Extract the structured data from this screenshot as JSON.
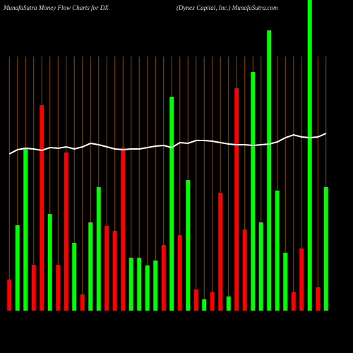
{
  "chart_data": {
    "type": "bar",
    "title": "MunafaSutra  Money Flow  Charts for DX",
    "subtitle": "(Dynex Capital,  Inc.) MunafaSutra.com",
    "categories": [
      null,
      null,
      null,
      null,
      null,
      null,
      null,
      null,
      null,
      null,
      null,
      null,
      null,
      null,
      null,
      null,
      null,
      null,
      null,
      null,
      null,
      null,
      null,
      null,
      null,
      null,
      null,
      null,
      null,
      null,
      null,
      null,
      null,
      null,
      null,
      null,
      null,
      null,
      null,
      null
    ],
    "values": [
      44,
      121,
      231,
      65,
      291,
      137,
      65,
      224,
      96,
      23,
      125,
      175,
      120,
      113,
      231,
      75,
      75,
      64,
      71,
      93,
      303,
      107,
      185,
      30,
      16,
      26,
      167,
      20,
      315,
      115,
      338,
      125,
      397,
      170,
      82,
      26,
      88,
      440,
      33,
      175
    ],
    "colors": [
      "#ff0000",
      "#00ff00",
      "#00ff00",
      "#ff0000",
      "#ff0000",
      "#00ff00",
      "#ff0000",
      "#ff0000",
      "#00ff00",
      "#ff0000",
      "#00ff00",
      "#00ff00",
      "#ff0000",
      "#ff0000",
      "#ff0000",
      "#00ff00",
      "#00ff00",
      "#00ff00",
      "#00ff00",
      "#ff0000",
      "#00ff00",
      "#ff0000",
      "#00ff00",
      "#ff0000",
      "#00ff00",
      "#ff0000",
      "#ff0000",
      "#00ff00",
      "#ff0000",
      "#ff0000",
      "#00ff00",
      "#00ff00",
      "#00ff00",
      "#00ff00",
      "#00ff00",
      "#ff0000",
      "#ff0000",
      "#00ff00",
      "#ff0000",
      "#00ff00"
    ],
    "line": {
      "color": "#ffffff",
      "values": [
        222,
        228,
        230,
        229,
        227,
        231,
        230,
        232,
        229,
        232,
        237,
        235,
        232,
        229,
        228,
        229,
        229,
        231,
        233,
        234,
        231,
        238,
        237,
        241,
        241,
        240,
        238,
        236,
        235,
        235,
        234,
        235,
        236,
        239,
        245,
        249,
        246,
        245,
        246,
        251
      ]
    },
    "ylim": [
      0,
      440
    ],
    "grid_color": "#8a4a00"
  }
}
